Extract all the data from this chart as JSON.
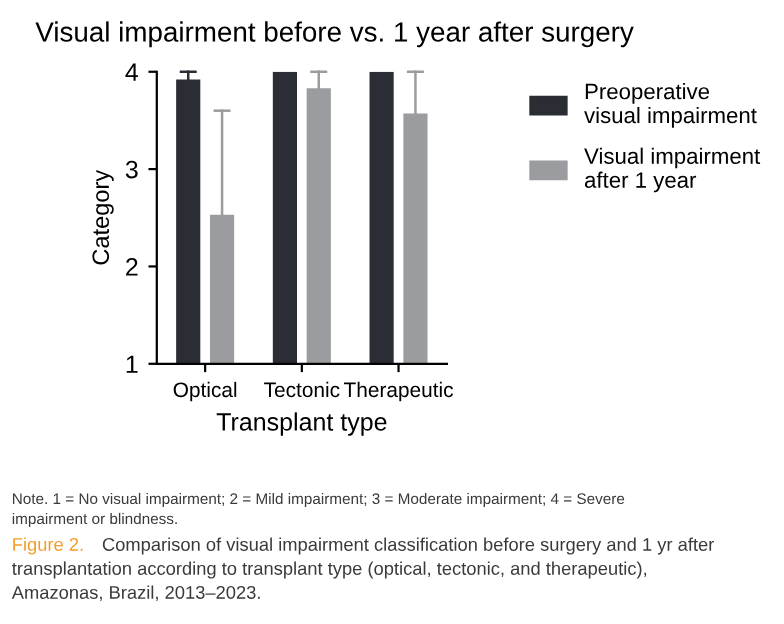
{
  "chart_data": {
    "type": "bar",
    "title": "Visual impairment before vs. 1 year after surgery",
    "xlabel": "Transplant type",
    "ylabel": "Category",
    "categories": [
      "Optical",
      "Tectonic",
      "Therapeutic"
    ],
    "series": [
      {
        "name": "Preoperative\nvisual impairment",
        "color": "#2a2d33",
        "values": [
          3.92,
          4,
          4
        ],
        "errors": [
          [
            3.92,
            4.0
          ],
          null,
          null
        ]
      },
      {
        "name": "Visual impairment\nafter 1 year",
        "color": "#9a9c9f",
        "values": [
          2.53,
          3.83,
          3.57
        ],
        "errors": [
          [
            2.53,
            3.6
          ],
          [
            3.83,
            4.0
          ],
          [
            3.57,
            4.0
          ]
        ]
      }
    ],
    "ylim": [
      1,
      4
    ],
    "yticks": [
      1,
      2,
      3,
      4
    ],
    "grid": false,
    "legend": "right",
    "annotations": [
      "Note. 1 = No visual impairment; 2 = Mild impairment; 3 = Moderate impairment; 4 = Severe",
      "impairment or blindness.",
      "Figure 2.",
      "Comparison of visual impairment classification before surgery and 1 yr after",
      "transplantation according to transplant type (optical, tectonic, and therapeutic),",
      "Amazonas, Brazil, 2013–2023."
    ]
  }
}
